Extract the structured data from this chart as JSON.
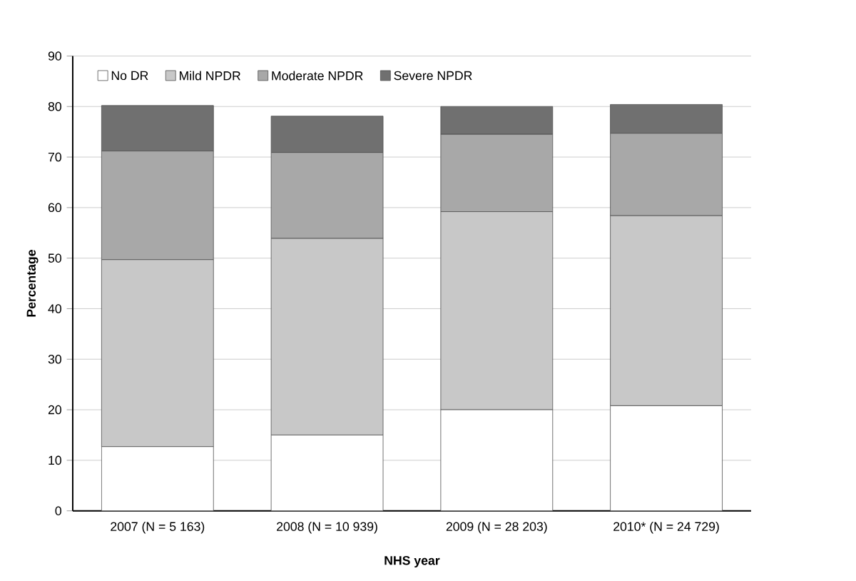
{
  "chart_data": {
    "type": "bar",
    "stacked": true,
    "xlabel": "NHS year",
    "ylabel": "Percentage",
    "categories": [
      "2007 (N = 5 163)",
      "2008 (N = 10 939)",
      "2009 (N = 28 203)",
      "2010* (N = 24 729)"
    ],
    "series": [
      {
        "name": "No DR",
        "color": "#ffffff",
        "values": [
          12.7,
          15.0,
          20.0,
          20.8
        ]
      },
      {
        "name": "Mild NPDR",
        "color": "#c8c8c8",
        "values": [
          37.0,
          38.9,
          39.2,
          37.6
        ]
      },
      {
        "name": "Moderate NPDR",
        "color": "#a8a8a8",
        "values": [
          21.5,
          17.0,
          15.3,
          16.3
        ]
      },
      {
        "name": "Severe NPDR",
        "color": "#707070",
        "values": [
          9.0,
          7.2,
          5.5,
          5.7
        ]
      }
    ],
    "ylim": [
      0,
      90
    ],
    "yticks": [
      0,
      10,
      20,
      30,
      40,
      50,
      60,
      70,
      80,
      90
    ],
    "grid": "y",
    "legend": "top left"
  }
}
